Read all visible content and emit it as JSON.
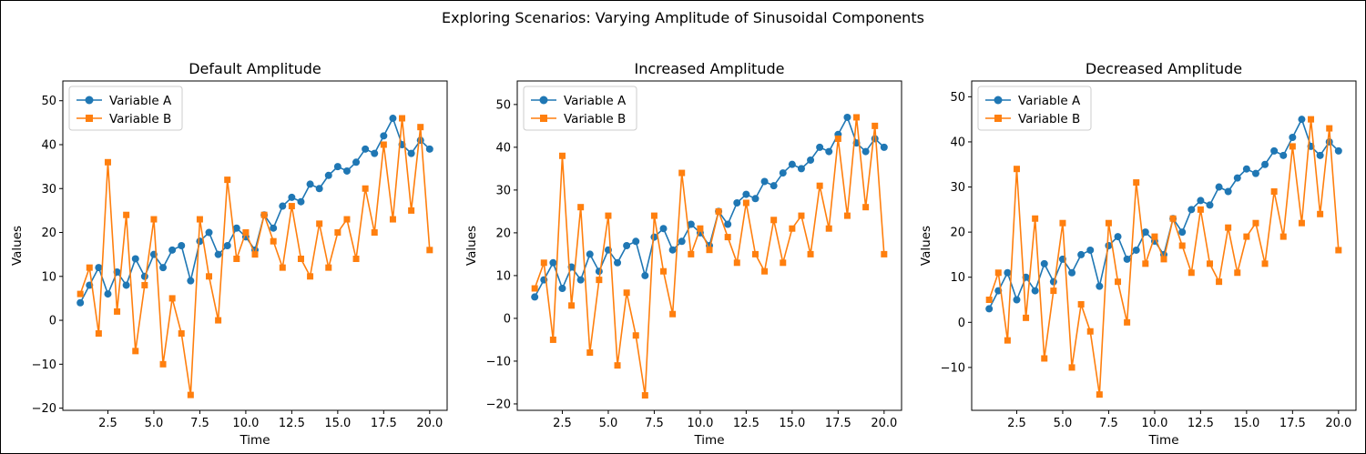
{
  "figure": {
    "title": "Exploring Scenarios: Varying Amplitude of Sinusoidal Components"
  },
  "colors": {
    "series_a": "#1f77b4",
    "series_b": "#ff7f0e"
  },
  "chart_data": [
    {
      "type": "line",
      "title": "Default Amplitude",
      "xlabel": "Time",
      "ylabel": "Values",
      "xlim": [
        0.05,
        20.95
      ],
      "ylim": [
        -20.5,
        54.5
      ],
      "xticks": [
        2.5,
        5.0,
        7.5,
        10.0,
        12.5,
        15.0,
        17.5,
        20.0
      ],
      "xtick_labels": [
        "2.5",
        "5.0",
        "7.5",
        "10.0",
        "12.5",
        "15.0",
        "17.5",
        "20.0"
      ],
      "yticks": [
        -20,
        -10,
        0,
        10,
        20,
        30,
        40,
        50
      ],
      "ytick_labels": [
        "−20",
        "−10",
        "0",
        "10",
        "20",
        "30",
        "40",
        "50"
      ],
      "legend": "upper-left",
      "series": [
        {
          "name": "Variable A",
          "marker": "circle",
          "x": [
            1,
            1.5,
            2,
            2.5,
            3,
            3.5,
            4,
            4.5,
            5,
            5.5,
            6,
            6.5,
            7,
            7.5,
            8,
            8.5,
            9,
            9.5,
            10,
            10.5,
            11,
            11.5,
            12,
            12.5,
            13,
            13.5,
            14,
            14.5,
            15,
            15.5,
            16,
            16.5,
            17,
            17.5,
            18,
            18.5,
            19,
            19.5,
            20
          ],
          "values": [
            4,
            8,
            12,
            6,
            11,
            8,
            14,
            10,
            15,
            12,
            16,
            17,
            9,
            18,
            20,
            15,
            17,
            21,
            19,
            16,
            24,
            21,
            26,
            28,
            27,
            31,
            30,
            33,
            35,
            34,
            36,
            39,
            38,
            42,
            46,
            40,
            38,
            41,
            39
          ]
        },
        {
          "name": "Variable B",
          "marker": "square",
          "x": [
            1,
            1.5,
            2,
            2.5,
            3,
            3.5,
            4,
            4.5,
            5,
            5.5,
            6,
            6.5,
            7,
            7.5,
            8,
            8.5,
            9,
            9.5,
            10,
            10.5,
            11,
            11.5,
            12,
            12.5,
            13,
            13.5,
            14,
            14.5,
            15,
            15.5,
            16,
            16.5,
            17,
            17.5,
            18,
            18.5,
            19,
            19.5,
            20
          ],
          "values": [
            6,
            12,
            -3,
            36,
            2,
            24,
            -7,
            8,
            23,
            -10,
            5,
            -3,
            -17,
            23,
            10,
            0,
            32,
            14,
            20,
            15,
            24,
            18,
            12,
            26,
            14,
            10,
            22,
            12,
            20,
            23,
            14,
            30,
            20,
            40,
            23,
            46,
            25,
            44,
            16
          ]
        }
      ]
    },
    {
      "type": "line",
      "title": "Increased Amplitude",
      "xlabel": "Time",
      "ylabel": "Values",
      "xlim": [
        0.05,
        20.95
      ],
      "ylim": [
        -21.5,
        55.5
      ],
      "xticks": [
        2.5,
        5.0,
        7.5,
        10.0,
        12.5,
        15.0,
        17.5,
        20.0
      ],
      "xtick_labels": [
        "2.5",
        "5.0",
        "7.5",
        "10.0",
        "12.5",
        "15.0",
        "17.5",
        "20.0"
      ],
      "yticks": [
        -20,
        -10,
        0,
        10,
        20,
        30,
        40,
        50
      ],
      "ytick_labels": [
        "−20",
        "−10",
        "0",
        "10",
        "20",
        "30",
        "40",
        "50"
      ],
      "legend": "upper-left",
      "series": [
        {
          "name": "Variable A",
          "marker": "circle",
          "x": [
            1,
            1.5,
            2,
            2.5,
            3,
            3.5,
            4,
            4.5,
            5,
            5.5,
            6,
            6.5,
            7,
            7.5,
            8,
            8.5,
            9,
            9.5,
            10,
            10.5,
            11,
            11.5,
            12,
            12.5,
            13,
            13.5,
            14,
            14.5,
            15,
            15.5,
            16,
            16.5,
            17,
            17.5,
            18,
            18.5,
            19,
            19.5,
            20
          ],
          "values": [
            5,
            9,
            13,
            7,
            12,
            9,
            15,
            11,
            16,
            13,
            17,
            18,
            10,
            19,
            21,
            16,
            18,
            22,
            20,
            17,
            25,
            22,
            27,
            29,
            28,
            32,
            31,
            34,
            36,
            35,
            37,
            40,
            39,
            43,
            47,
            41,
            39,
            42,
            40
          ]
        },
        {
          "name": "Variable B",
          "marker": "square",
          "x": [
            1,
            1.5,
            2,
            2.5,
            3,
            3.5,
            4,
            4.5,
            5,
            5.5,
            6,
            6.5,
            7,
            7.5,
            8,
            8.5,
            9,
            9.5,
            10,
            10.5,
            11,
            11.5,
            12,
            12.5,
            13,
            13.5,
            14,
            14.5,
            15,
            15.5,
            16,
            16.5,
            17,
            17.5,
            18,
            18.5,
            19,
            19.5,
            20
          ],
          "values": [
            7,
            13,
            -5,
            38,
            3,
            26,
            -8,
            9,
            24,
            -11,
            6,
            -4,
            -18,
            24,
            11,
            1,
            34,
            15,
            21,
            16,
            25,
            19,
            13,
            27,
            15,
            11,
            23,
            13,
            21,
            24,
            15,
            31,
            21,
            42,
            24,
            47,
            26,
            45,
            15
          ]
        }
      ]
    },
    {
      "type": "line",
      "title": "Decreased Amplitude",
      "xlabel": "Time",
      "ylabel": "Values",
      "xlim": [
        0.05,
        20.95
      ],
      "ylim": [
        -19.5,
        53.5
      ],
      "xticks": [
        2.5,
        5.0,
        7.5,
        10.0,
        12.5,
        15.0,
        17.5,
        20.0
      ],
      "xtick_labels": [
        "2.5",
        "5.0",
        "7.5",
        "10.0",
        "12.5",
        "15.0",
        "17.5",
        "20.0"
      ],
      "yticks": [
        -10,
        0,
        10,
        20,
        30,
        40,
        50
      ],
      "ytick_labels": [
        "−10",
        "0",
        "10",
        "20",
        "30",
        "40",
        "50"
      ],
      "legend": "upper-left",
      "series": [
        {
          "name": "Variable A",
          "marker": "circle",
          "x": [
            1,
            1.5,
            2,
            2.5,
            3,
            3.5,
            4,
            4.5,
            5,
            5.5,
            6,
            6.5,
            7,
            7.5,
            8,
            8.5,
            9,
            9.5,
            10,
            10.5,
            11,
            11.5,
            12,
            12.5,
            13,
            13.5,
            14,
            14.5,
            15,
            15.5,
            16,
            16.5,
            17,
            17.5,
            18,
            18.5,
            19,
            19.5,
            20
          ],
          "values": [
            3,
            7,
            11,
            5,
            10,
            7,
            13,
            9,
            14,
            11,
            15,
            16,
            8,
            17,
            19,
            14,
            16,
            20,
            18,
            15,
            23,
            20,
            25,
            27,
            26,
            30,
            29,
            32,
            34,
            33,
            35,
            38,
            37,
            41,
            45,
            39,
            37,
            40,
            38
          ]
        },
        {
          "name": "Variable B",
          "marker": "square",
          "x": [
            1,
            1.5,
            2,
            2.5,
            3,
            3.5,
            4,
            4.5,
            5,
            5.5,
            6,
            6.5,
            7,
            7.5,
            8,
            8.5,
            9,
            9.5,
            10,
            10.5,
            11,
            11.5,
            12,
            12.5,
            13,
            13.5,
            14,
            14.5,
            15,
            15.5,
            16,
            16.5,
            17,
            17.5,
            18,
            18.5,
            19,
            19.5,
            20
          ],
          "values": [
            5,
            11,
            -4,
            34,
            1,
            23,
            -8,
            7,
            22,
            -10,
            4,
            -2,
            -16,
            22,
            9,
            0,
            31,
            13,
            19,
            14,
            23,
            17,
            11,
            25,
            13,
            9,
            21,
            11,
            19,
            22,
            13,
            29,
            19,
            39,
            22,
            45,
            24,
            43,
            16
          ]
        }
      ]
    }
  ]
}
